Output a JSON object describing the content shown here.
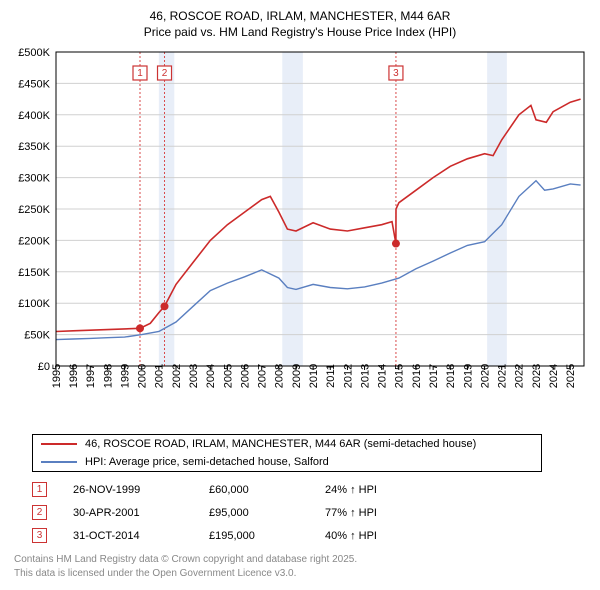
{
  "title_line1": "46, ROSCOE ROAD, IRLAM, MANCHESTER, M44 6AR",
  "title_line2": "Price paid vs. HM Land Registry's House Price Index (HPI)",
  "chart": {
    "type": "line",
    "xlim": [
      1995,
      2025.8
    ],
    "ylim": [
      0,
      500
    ],
    "ytick_step": 50,
    "y_prefix": "£",
    "y_suffix": "K",
    "x_years": [
      1995,
      1996,
      1997,
      1998,
      1999,
      2000,
      2001,
      2002,
      2003,
      2004,
      2005,
      2006,
      2007,
      2008,
      2009,
      2010,
      2011,
      2012,
      2013,
      2014,
      2015,
      2016,
      2017,
      2018,
      2019,
      2020,
      2021,
      2022,
      2023,
      2024,
      2025
    ],
    "grid_color": "#d0d0d0",
    "background_color": "#ffffff",
    "price_color": "#cc2a2a",
    "hpi_color": "#5a7fc0",
    "marker_band_color": "#e8eef8",
    "marker_line_color": "#d94a4a",
    "price_series": [
      [
        1995,
        55
      ],
      [
        1996,
        56
      ],
      [
        1997,
        57
      ],
      [
        1998,
        58
      ],
      [
        1999,
        59
      ],
      [
        1999.9,
        60
      ],
      [
        2000.5,
        68
      ],
      [
        2001,
        85
      ],
      [
        2001.33,
        95
      ],
      [
        2002,
        130
      ],
      [
        2003,
        165
      ],
      [
        2004,
        200
      ],
      [
        2005,
        225
      ],
      [
        2006,
        245
      ],
      [
        2007,
        265
      ],
      [
        2007.5,
        270
      ],
      [
        2008,
        245
      ],
      [
        2008.5,
        218
      ],
      [
        2009,
        215
      ],
      [
        2010,
        228
      ],
      [
        2011,
        218
      ],
      [
        2012,
        215
      ],
      [
        2013,
        220
      ],
      [
        2014,
        225
      ],
      [
        2014.6,
        230
      ],
      [
        2014.83,
        195
      ],
      [
        2014.831,
        250
      ],
      [
        2015,
        260
      ],
      [
        2016,
        280
      ],
      [
        2017,
        300
      ],
      [
        2018,
        318
      ],
      [
        2019,
        330
      ],
      [
        2020,
        338
      ],
      [
        2020.5,
        335
      ],
      [
        2021,
        360
      ],
      [
        2022,
        400
      ],
      [
        2022.7,
        415
      ],
      [
        2023,
        392
      ],
      [
        2023.6,
        388
      ],
      [
        2024,
        405
      ],
      [
        2025,
        420
      ],
      [
        2025.6,
        425
      ]
    ],
    "hpi_series": [
      [
        1995,
        42
      ],
      [
        1996,
        43
      ],
      [
        1997,
        44
      ],
      [
        1998,
        45
      ],
      [
        1999,
        46
      ],
      [
        2000,
        50
      ],
      [
        2001,
        55
      ],
      [
        2002,
        70
      ],
      [
        2003,
        95
      ],
      [
        2004,
        120
      ],
      [
        2005,
        132
      ],
      [
        2006,
        142
      ],
      [
        2007,
        153
      ],
      [
        2008,
        140
      ],
      [
        2008.5,
        125
      ],
      [
        2009,
        122
      ],
      [
        2010,
        130
      ],
      [
        2011,
        125
      ],
      [
        2012,
        123
      ],
      [
        2013,
        126
      ],
      [
        2014,
        132
      ],
      [
        2015,
        140
      ],
      [
        2016,
        155
      ],
      [
        2017,
        167
      ],
      [
        2018,
        180
      ],
      [
        2019,
        192
      ],
      [
        2020,
        198
      ],
      [
        2021,
        225
      ],
      [
        2022,
        270
      ],
      [
        2023,
        295
      ],
      [
        2023.5,
        280
      ],
      [
        2024,
        282
      ],
      [
        2025,
        290
      ],
      [
        2025.6,
        288
      ]
    ],
    "markers": [
      {
        "num": "1",
        "year": 1999.9,
        "value": 60
      },
      {
        "num": "2",
        "year": 2001.33,
        "value": 95
      },
      {
        "num": "3",
        "year": 2014.83,
        "value": 195
      }
    ],
    "bands": [
      {
        "from": 2001,
        "to": 2001.9
      },
      {
        "from": 2008.2,
        "to": 2009.4
      },
      {
        "from": 2020.15,
        "to": 2021.3
      }
    ]
  },
  "legend": {
    "price_label": "46, ROSCOE ROAD, IRLAM, MANCHESTER, M44 6AR (semi-detached house)",
    "hpi_label": "HPI: Average price, semi-detached house, Salford"
  },
  "sales": [
    {
      "num": "1",
      "date": "26-NOV-1999",
      "price": "£60,000",
      "delta": "24% ↑ HPI"
    },
    {
      "num": "2",
      "date": "30-APR-2001",
      "price": "£95,000",
      "delta": "77% ↑ HPI"
    },
    {
      "num": "3",
      "date": "31-OCT-2014",
      "price": "£195,000",
      "delta": "40% ↑ HPI"
    }
  ],
  "footer1": "Contains HM Land Registry data © Crown copyright and database right 2025.",
  "footer2": "This data is licensed under the Open Government Licence v3.0."
}
